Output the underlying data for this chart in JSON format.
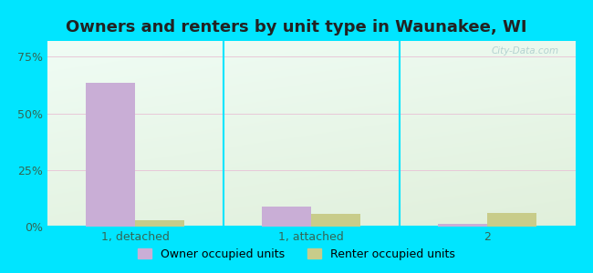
{
  "title": "Owners and renters by unit type in Waunakee, WI",
  "categories": [
    "1, detached",
    "1, attached",
    "2"
  ],
  "owner_values": [
    0.635,
    0.09,
    0.013
  ],
  "renter_values": [
    0.028,
    0.055,
    0.062
  ],
  "owner_color": "#c9aed6",
  "renter_color": "#c8cc8a",
  "yticks": [
    0.0,
    0.25,
    0.5,
    0.75
  ],
  "ytick_labels": [
    "0%",
    "25%",
    "50%",
    "75%"
  ],
  "ylim": [
    0,
    0.82
  ],
  "background_color": "#00e5ff",
  "bar_width": 0.28,
  "legend_owner": "Owner occupied units",
  "legend_renter": "Renter occupied units",
  "title_fontsize": 13,
  "tick_fontsize": 9,
  "label_fontsize": 9,
  "grid_color": "#e8c8d8",
  "text_color": "#336655",
  "watermark_color": "#aacccc"
}
